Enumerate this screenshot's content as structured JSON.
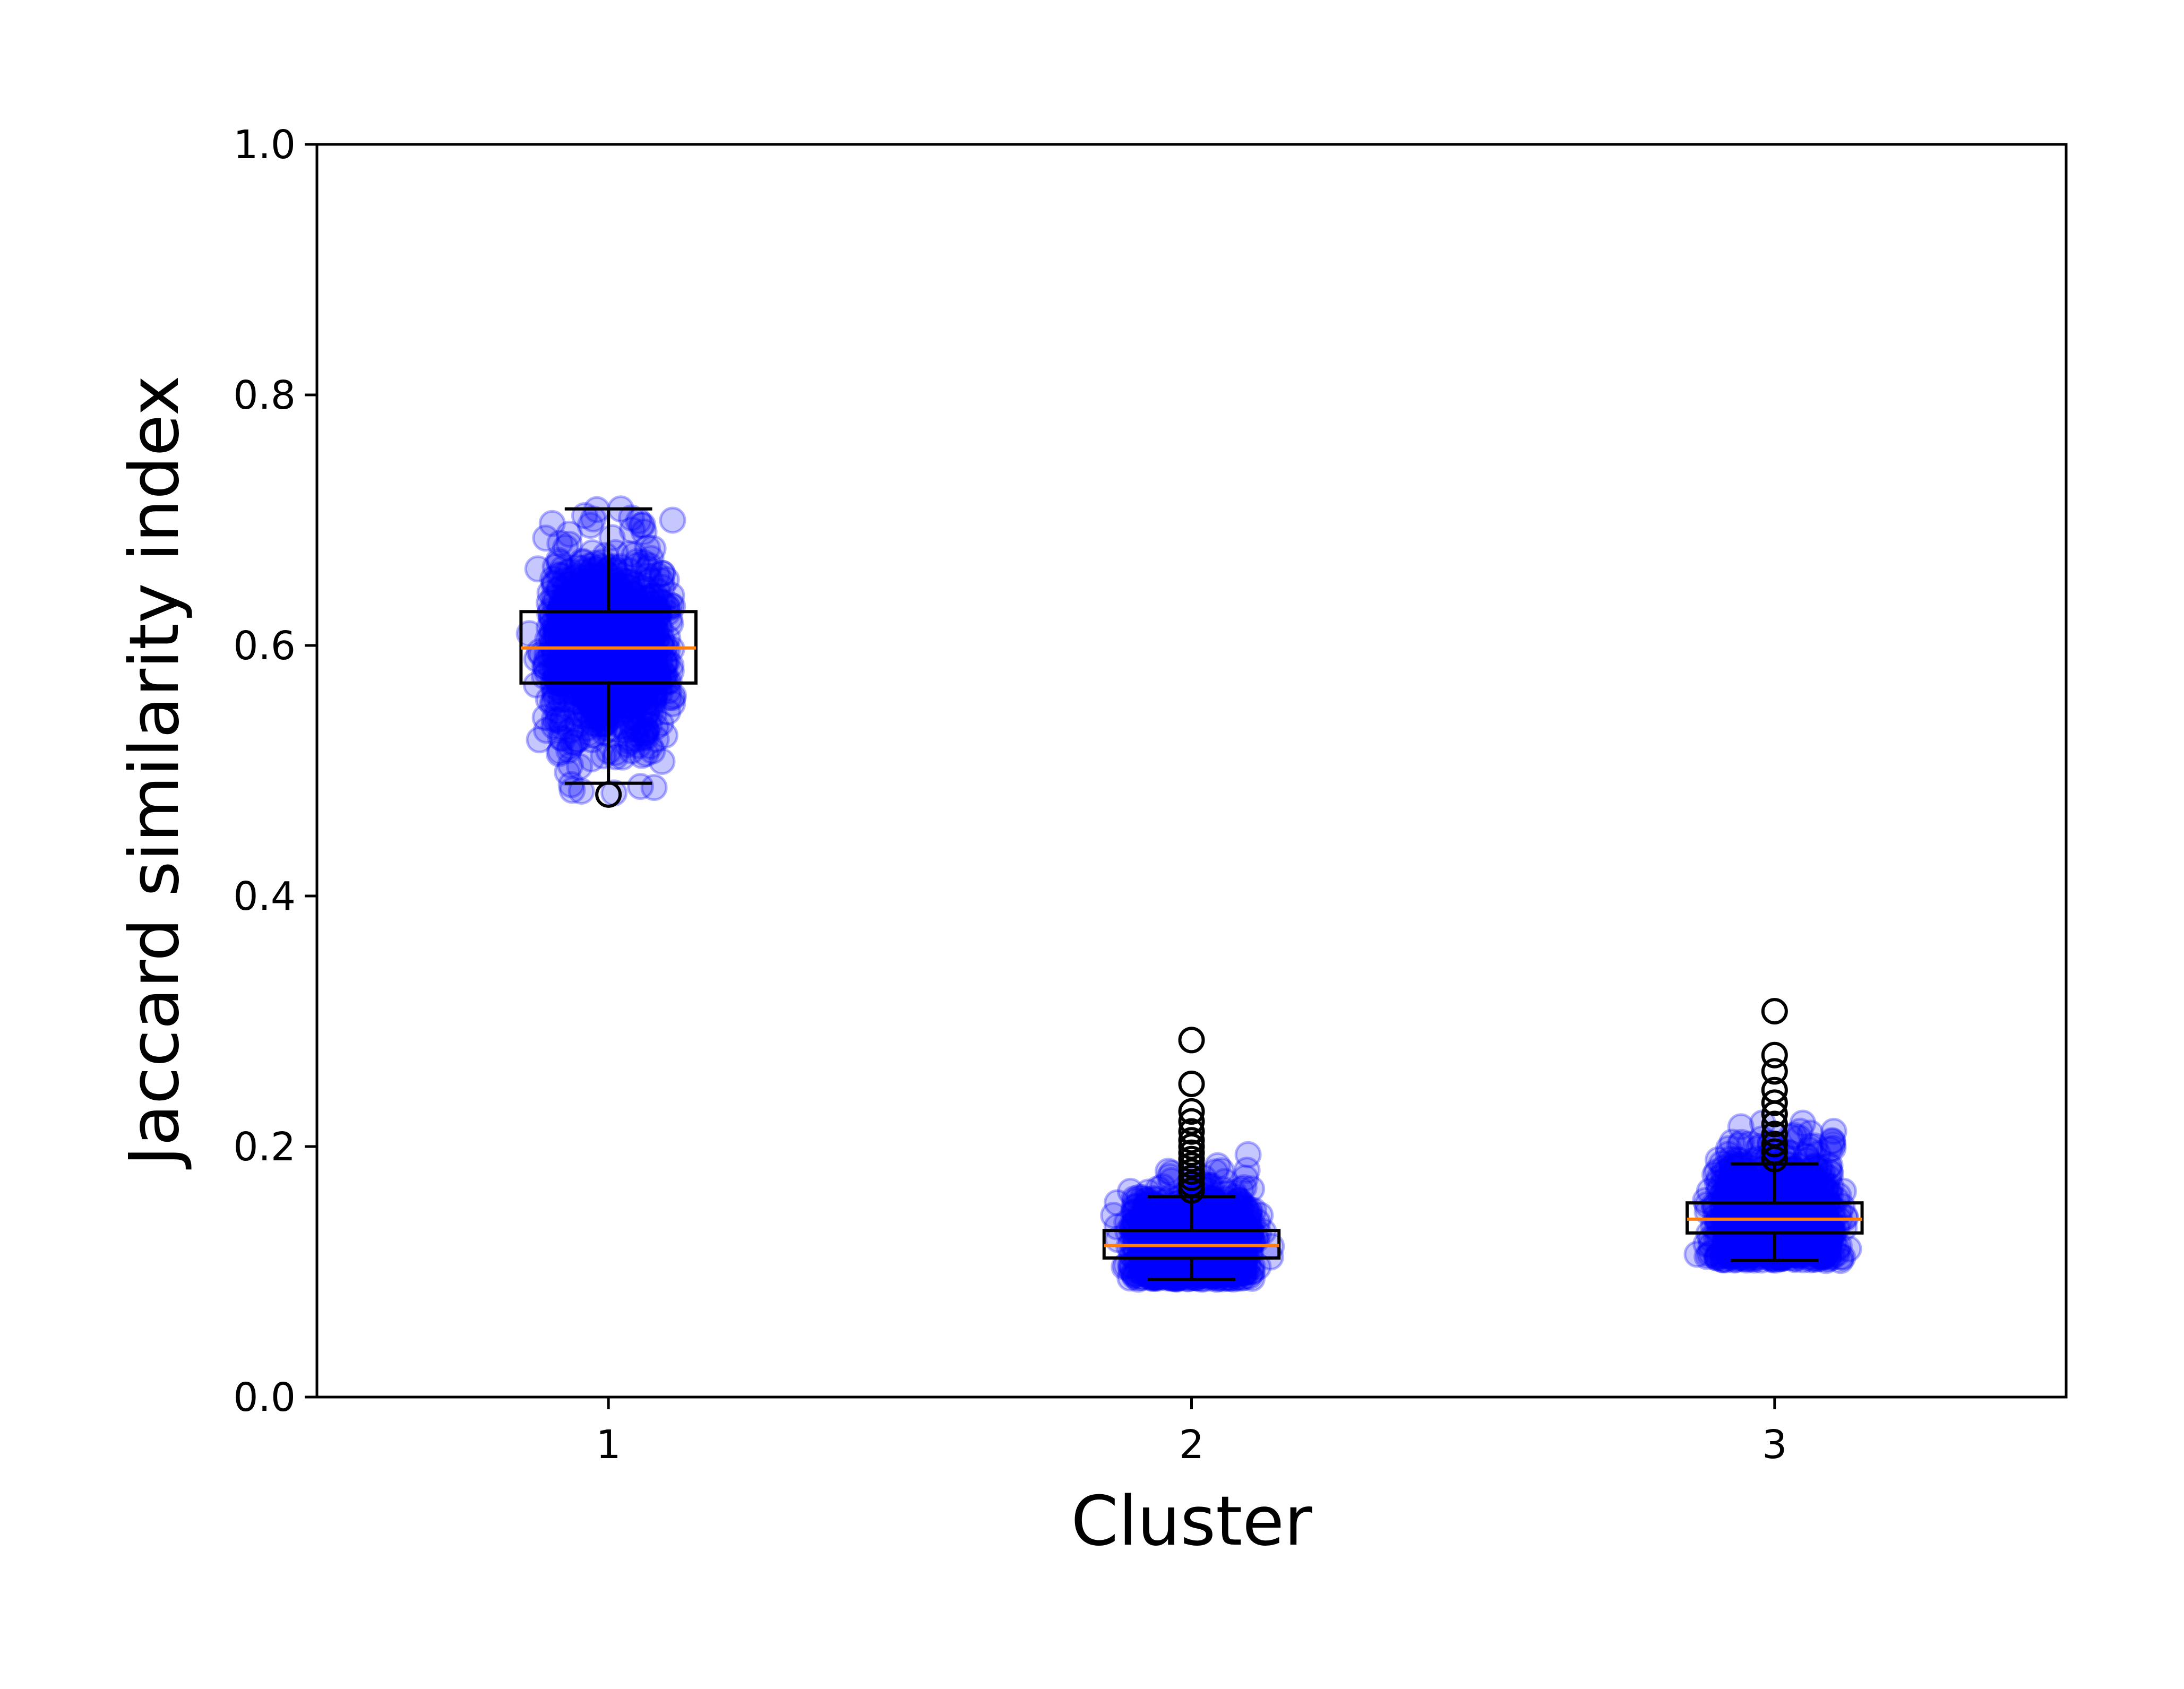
{
  "chart_data": {
    "type": "box",
    "xlabel": "Cluster",
    "ylabel": "Jaccard similarity index",
    "categories": [
      "1",
      "2",
      "3"
    ],
    "ylim": [
      0.0,
      1.0
    ],
    "xlim": [
      0.5,
      3.5
    ],
    "yticks": [
      0.0,
      0.2,
      0.4,
      0.6,
      0.8,
      1.0
    ],
    "ytick_labels": [
      "0.0",
      "0.2",
      "0.4",
      "0.6",
      "0.8",
      "1.0"
    ],
    "grid": false,
    "legend": "none",
    "colors": {
      "points": "#0000ff",
      "median": "#ff7f0e",
      "box": "#000000"
    },
    "boxes": [
      {
        "category": "1",
        "whisker_low": 0.49,
        "q1": 0.57,
        "median": 0.598,
        "q3": 0.627,
        "whisker_high": 0.709,
        "outliers": [
          0.481
        ]
      },
      {
        "category": "2",
        "whisker_low": 0.094,
        "q1": 0.111,
        "median": 0.121,
        "q3": 0.133,
        "whisker_high": 0.16,
        "outliers": [
          0.165,
          0.17,
          0.175,
          0.18,
          0.185,
          0.19,
          0.195,
          0.2,
          0.205,
          0.212,
          0.22,
          0.228,
          0.25,
          0.285
        ]
      },
      {
        "category": "3",
        "whisker_low": 0.109,
        "q1": 0.131,
        "median": 0.142,
        "q3": 0.155,
        "whisker_high": 0.186,
        "outliers": [
          0.19,
          0.196,
          0.202,
          0.21,
          0.218,
          0.226,
          0.235,
          0.245,
          0.26,
          0.273,
          0.308
        ]
      }
    ],
    "points": [
      {
        "category": "1",
        "n": 1000,
        "center": 0.598,
        "sd": 0.04,
        "min": 0.481,
        "max": 0.709,
        "spread": 0.13
      },
      {
        "category": "2",
        "n": 1000,
        "center": 0.122,
        "sd": 0.022,
        "min": 0.094,
        "max": 0.285,
        "spread": 0.13
      },
      {
        "category": "3",
        "n": 1000,
        "center": 0.143,
        "sd": 0.026,
        "min": 0.109,
        "max": 0.308,
        "spread": 0.13
      }
    ]
  }
}
